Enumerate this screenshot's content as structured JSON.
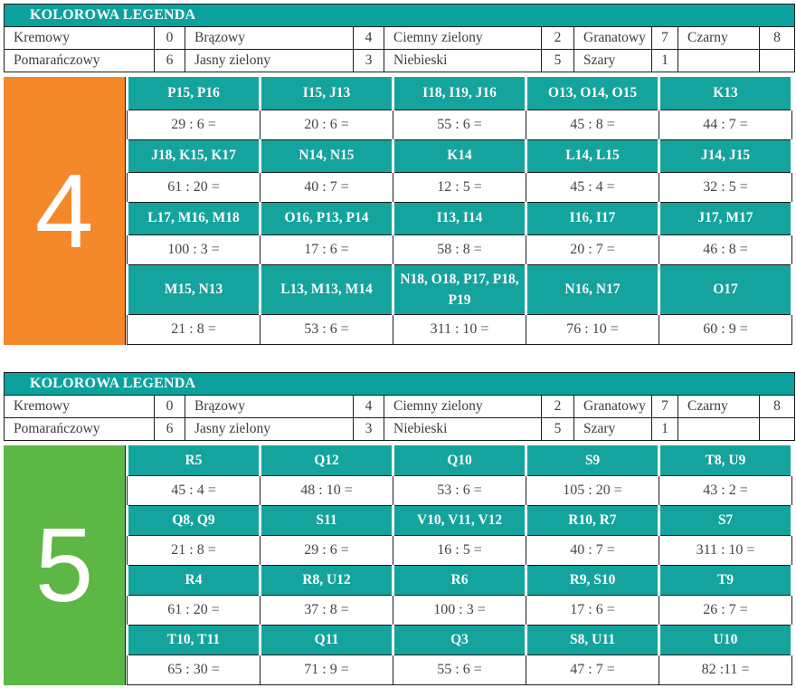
{
  "colors": {
    "legend_header_teal": "#0BA29E",
    "grid_header_teal": "#14A39D",
    "border_black": "#1C1C1C",
    "section_4_orange": "#F4882B",
    "section_5_green": "#5CB744",
    "header_text_white": "#FFFFFF"
  },
  "legend": {
    "title": "KOLOROWA LEGENDA",
    "rows": [
      [
        {
          "name": "Kremowy",
          "value": "0"
        },
        {
          "name": "Brązowy",
          "value": "4"
        },
        {
          "name": "Ciemny zielony",
          "value": "2"
        },
        {
          "name": "Granatowy",
          "value": "7"
        },
        {
          "name": "Czarny",
          "value": "8"
        }
      ],
      [
        {
          "name": "Pomarańczowy",
          "value": "6"
        },
        {
          "name": "Jasny zielony",
          "value": "3"
        },
        {
          "name": "Niebieski",
          "value": "5"
        },
        {
          "name": "Szary",
          "value": "1"
        },
        {
          "name": "",
          "value": ""
        }
      ]
    ]
  },
  "sections": [
    {
      "number": "4",
      "color": "#F4882B",
      "rows": [
        {
          "cells": [
            {
              "coords": "P15, P16",
              "problem": "29 : 6 ="
            },
            {
              "coords": "I15, J13",
              "problem": "20 : 6 ="
            },
            {
              "coords": "I18, I19, J16",
              "problem": "55 : 6 ="
            },
            {
              "coords": "O13, O14, O15",
              "problem": "45 : 8 ="
            },
            {
              "coords": "K13",
              "problem": "44 : 7 ="
            }
          ]
        },
        {
          "cells": [
            {
              "coords": "J18, K15, K17",
              "problem": "61 : 20 ="
            },
            {
              "coords": "N14, N15",
              "problem": "40 : 7 ="
            },
            {
              "coords": "K14",
              "problem": "12 : 5 ="
            },
            {
              "coords": "L14, L15",
              "problem": "45 : 4 ="
            },
            {
              "coords": "J14, J15",
              "problem": "32 : 5 ="
            }
          ]
        },
        {
          "cells": [
            {
              "coords": "L17, M16, M18",
              "problem": "100 : 3 ="
            },
            {
              "coords": "O16, P13, P14",
              "problem": "17 : 6 ="
            },
            {
              "coords": "I13, I14",
              "problem": "58 : 8 ="
            },
            {
              "coords": "I16, I17",
              "problem": "20 : 7 ="
            },
            {
              "coords": "J17, M17",
              "problem": "46 : 8 ="
            }
          ]
        },
        {
          "cells": [
            {
              "coords": "M15, N13",
              "problem": "21 : 8 ="
            },
            {
              "coords": "L13, M13, M14",
              "problem": "53 : 6 ="
            },
            {
              "coords": "N18, O18, P17, P18, P19",
              "problem": "311 : 10 ="
            },
            {
              "coords": "N16, N17",
              "problem": "76 : 10 ="
            },
            {
              "coords": "O17",
              "problem": "60 : 9 ="
            }
          ]
        }
      ]
    },
    {
      "number": "5",
      "color": "#5CB744",
      "rows": [
        {
          "cells": [
            {
              "coords": "R5",
              "problem": "45 : 4 ="
            },
            {
              "coords": "Q12",
              "problem": "48 : 10 ="
            },
            {
              "coords": "Q10",
              "problem": "53 : 6 ="
            },
            {
              "coords": "S9",
              "problem": "105 : 20 ="
            },
            {
              "coords": "T8, U9",
              "problem": "43 : 2 ="
            }
          ]
        },
        {
          "cells": [
            {
              "coords": "Q8, Q9",
              "problem": "21 : 8 ="
            },
            {
              "coords": "S11",
              "problem": "29 : 6 ="
            },
            {
              "coords": "V10, V11, V12",
              "problem": "16 : 5 ="
            },
            {
              "coords": "R10, R7",
              "problem": "40 : 7 ="
            },
            {
              "coords": "S7",
              "problem": "311 : 10 ="
            }
          ]
        },
        {
          "cells": [
            {
              "coords": "R4",
              "problem": "61 : 20 ="
            },
            {
              "coords": "R8, U12",
              "problem": "37 : 8 ="
            },
            {
              "coords": "R6",
              "problem": "100 : 3 ="
            },
            {
              "coords": "R9, S10",
              "problem": "17 : 6 ="
            },
            {
              "coords": "T9",
              "problem": "26 : 7 ="
            }
          ]
        },
        {
          "cells": [
            {
              "coords": "T10, T11",
              "problem": "65 : 30 ="
            },
            {
              "coords": "Q11",
              "problem": "71 : 9 ="
            },
            {
              "coords": "Q3",
              "problem": "55 : 6 ="
            },
            {
              "coords": "S8, U11",
              "problem": "47 : 7 ="
            },
            {
              "coords": "U10",
              "problem": "82 :11 ="
            }
          ]
        }
      ]
    }
  ]
}
